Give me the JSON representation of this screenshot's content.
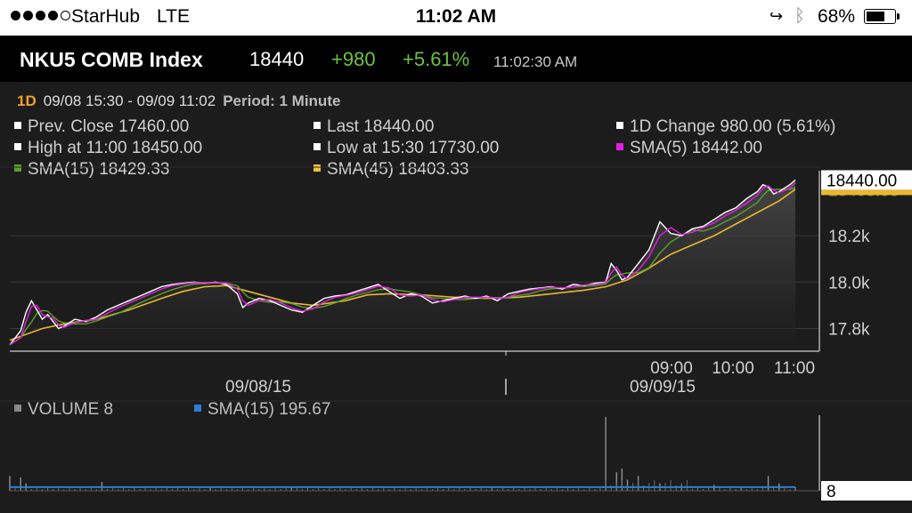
{
  "status_bar": {
    "carrier": "StarHub",
    "network": "LTE",
    "time": "11:02 AM",
    "battery": "68%",
    "battery_level": 0.68
  },
  "quote": {
    "ticker": "NKU5 COMB Index",
    "last": "18440",
    "change": "+980",
    "change_pct": "+5.61%",
    "timestamp": "11:02:30 AM"
  },
  "range": {
    "timeframe": "1D",
    "dates": "09/08 15:30 - 09/09 11:02",
    "period": "Period: 1 Minute"
  },
  "legend": [
    {
      "label": "Prev. Close 17460.00",
      "color": "#ffffff"
    },
    {
      "label": "Last 18440.00",
      "color": "#ffffff"
    },
    {
      "label": "1D Change 980.00 (5.61%)",
      "color": "#ffffff"
    },
    {
      "label": "High at 11:00 18450.00",
      "color": "#ffffff"
    },
    {
      "label": "Low at 15:30 17730.00",
      "color": "#ffffff"
    },
    {
      "label": "SMA(5) 18442.00",
      "color": "#e020e0"
    },
    {
      "label": "SMA(15) 18429.33",
      "color": "#5aa02c"
    },
    {
      "label": "SMA(45) 18403.33",
      "color": "#f0c040"
    }
  ],
  "volume_legend": {
    "volume": "VOLUME 8",
    "volume_color": "#888888",
    "sma": "SMA(15) 195.67",
    "sma_color": "#2a7fd4"
  },
  "chart_data": [
    {
      "type": "line",
      "y_ticks": [
        "18.2k",
        "18.0k",
        "17.8k"
      ],
      "y_tick_values": [
        18200,
        18000,
        17800
      ],
      "ylim": [
        17710,
        18480
      ],
      "x_time_labels": [
        "09:00",
        "10:00",
        "11:00"
      ],
      "x_date_labels": [
        "09/08/15",
        "09/09/15"
      ],
      "last_label": "18440.00",
      "last_value": 18440,
      "sma_label_partial": "18403.33",
      "price_points": [
        [
          0,
          17730
        ],
        [
          2,
          17790
        ],
        [
          3,
          17870
        ],
        [
          4,
          17920
        ],
        [
          5,
          17880
        ],
        [
          6,
          17840
        ],
        [
          7,
          17860
        ],
        [
          8,
          17830
        ],
        [
          9,
          17800
        ],
        [
          10,
          17810
        ],
        [
          12,
          17840
        ],
        [
          14,
          17830
        ],
        [
          16,
          17850
        ],
        [
          18,
          17880
        ],
        [
          20,
          17900
        ],
        [
          22,
          17920
        ],
        [
          24,
          17940
        ],
        [
          26,
          17960
        ],
        [
          28,
          17980
        ],
        [
          30,
          17990
        ],
        [
          32,
          17995
        ],
        [
          34,
          18000
        ],
        [
          36,
          17995
        ],
        [
          38,
          18000
        ],
        [
          40,
          17990
        ],
        [
          42,
          17950
        ],
        [
          43,
          17890
        ],
        [
          44,
          17910
        ],
        [
          46,
          17930
        ],
        [
          48,
          17920
        ],
        [
          50,
          17900
        ],
        [
          52,
          17880
        ],
        [
          54,
          17870
        ],
        [
          56,
          17900
        ],
        [
          58,
          17930
        ],
        [
          60,
          17940
        ],
        [
          62,
          17945
        ],
        [
          64,
          17960
        ],
        [
          66,
          17975
        ],
        [
          68,
          17990
        ],
        [
          70,
          17960
        ],
        [
          72,
          17930
        ],
        [
          74,
          17950
        ],
        [
          76,
          17940
        ],
        [
          78,
          17910
        ],
        [
          80,
          17920
        ],
        [
          82,
          17930
        ],
        [
          84,
          17940
        ],
        [
          86,
          17930
        ],
        [
          88,
          17940
        ],
        [
          90,
          17920
        ],
        [
          92,
          17950
        ],
        [
          94,
          17960
        ],
        [
          96,
          17970
        ],
        [
          98,
          17975
        ],
        [
          100,
          17980
        ],
        [
          102,
          17970
        ],
        [
          104,
          17990
        ],
        [
          106,
          17985
        ],
        [
          108,
          17995
        ],
        [
          110,
          18000
        ],
        [
          111,
          18080
        ],
        [
          112,
          18050
        ],
        [
          113,
          18010
        ],
        [
          114,
          18020
        ],
        [
          116,
          18080
        ],
        [
          118,
          18140
        ],
        [
          120,
          18260
        ],
        [
          122,
          18210
        ],
        [
          124,
          18200
        ],
        [
          126,
          18230
        ],
        [
          128,
          18240
        ],
        [
          130,
          18270
        ],
        [
          132,
          18300
        ],
        [
          134,
          18320
        ],
        [
          136,
          18360
        ],
        [
          138,
          18390
        ],
        [
          139,
          18420
        ],
        [
          140,
          18410
        ],
        [
          141,
          18380
        ],
        [
          142,
          18390
        ],
        [
          144,
          18420
        ],
        [
          145,
          18440
        ]
      ],
      "sma45_points": [
        [
          0,
          17750
        ],
        [
          6,
          17800
        ],
        [
          10,
          17820
        ],
        [
          16,
          17840
        ],
        [
          22,
          17880
        ],
        [
          28,
          17930
        ],
        [
          32,
          17960
        ],
        [
          36,
          17980
        ],
        [
          40,
          17985
        ],
        [
          44,
          17960
        ],
        [
          48,
          17935
        ],
        [
          52,
          17910
        ],
        [
          56,
          17900
        ],
        [
          62,
          17920
        ],
        [
          66,
          17945
        ],
        [
          70,
          17950
        ],
        [
          76,
          17945
        ],
        [
          82,
          17935
        ],
        [
          88,
          17930
        ],
        [
          94,
          17935
        ],
        [
          100,
          17950
        ],
        [
          106,
          17965
        ],
        [
          110,
          17980
        ],
        [
          114,
          18010
        ],
        [
          118,
          18060
        ],
        [
          122,
          18120
        ],
        [
          126,
          18160
        ],
        [
          130,
          18200
        ],
        [
          134,
          18250
        ],
        [
          138,
          18300
        ],
        [
          142,
          18350
        ],
        [
          145,
          18400
        ]
      ],
      "x_domain": [
        0,
        145
      ]
    },
    {
      "type": "bar",
      "series_name": "VOLUME",
      "last_volume_label": "8",
      "volume_spikes": [
        [
          0,
          0.2
        ],
        [
          2,
          0.18
        ],
        [
          3,
          0.1
        ],
        [
          17,
          0.12
        ],
        [
          37,
          0.05
        ],
        [
          52,
          0.04
        ],
        [
          89,
          0.05
        ],
        [
          110,
          1.0
        ],
        [
          112,
          0.25
        ],
        [
          113,
          0.3
        ],
        [
          114,
          0.15
        ],
        [
          116,
          0.2
        ],
        [
          120,
          0.1
        ],
        [
          124,
          0.08
        ],
        [
          130,
          0.08
        ],
        [
          135,
          0.06
        ],
        [
          140,
          0.2
        ],
        [
          142,
          0.1
        ],
        [
          145,
          0.05
        ]
      ],
      "sma15_level": 0.05
    }
  ]
}
